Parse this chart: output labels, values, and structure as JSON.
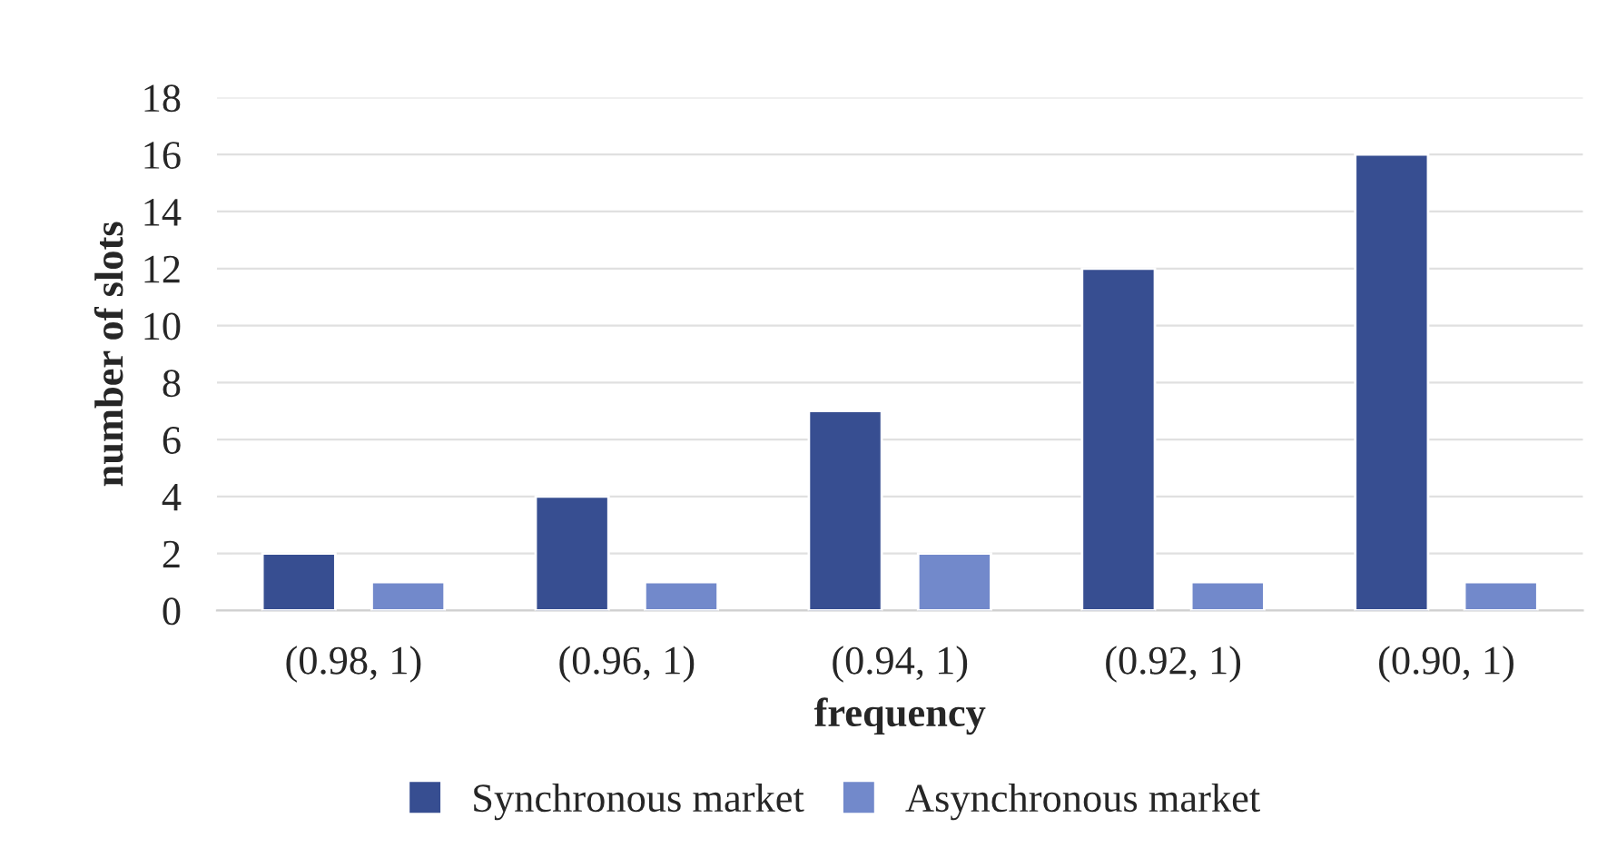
{
  "chart_data": {
    "type": "bar",
    "xlabel": "frequency",
    "ylabel": "number of slots",
    "categories": [
      "(0.98, 1)",
      "(0.96, 1)",
      "(0.94, 1)",
      "(0.92, 1)",
      "(0.90, 1)"
    ],
    "series": [
      {
        "name": "Synchronous market",
        "color": "#374e91",
        "values": [
          2,
          4,
          7,
          12,
          16
        ]
      },
      {
        "name": "Asynchronous market",
        "color": "#7289cb",
        "values": [
          1,
          1,
          2,
          1,
          1
        ]
      }
    ],
    "ylim": [
      0,
      18
    ],
    "yticks": [
      0,
      2,
      4,
      6,
      8,
      10,
      12,
      14,
      16,
      18
    ],
    "grid": "y",
    "legend": "bottom"
  }
}
